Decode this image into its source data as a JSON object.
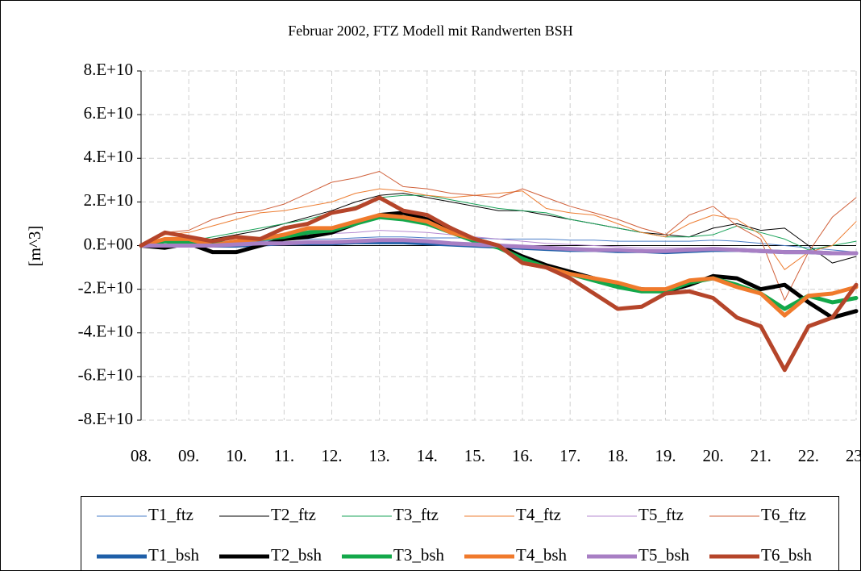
{
  "chart_data": {
    "type": "line",
    "title": "Februar 2002, FTZ Modell mit Randwerten BSH",
    "y_label": "[m^3]",
    "x": [
      8,
      8.5,
      9,
      9.5,
      10,
      10.5,
      11,
      11.5,
      12,
      12.5,
      13,
      13.5,
      14,
      14.5,
      15,
      15.5,
      16,
      16.5,
      17,
      17.5,
      18,
      18.5,
      19,
      19.5,
      20,
      20.5,
      21,
      21.5,
      22,
      22.5,
      23
    ],
    "xlim": [
      8,
      23
    ],
    "xticks": [
      {
        "value": 8,
        "label": "08."
      },
      {
        "value": 9,
        "label": "09."
      },
      {
        "value": 10,
        "label": "10."
      },
      {
        "value": 11,
        "label": "11."
      },
      {
        "value": 12,
        "label": "12."
      },
      {
        "value": 13,
        "label": "13."
      },
      {
        "value": 14,
        "label": "14."
      },
      {
        "value": 15,
        "label": "15."
      },
      {
        "value": 16,
        "label": "16."
      },
      {
        "value": 17,
        "label": "17."
      },
      {
        "value": 18,
        "label": "18."
      },
      {
        "value": 19,
        "label": "19."
      },
      {
        "value": 20,
        "label": "20."
      },
      {
        "value": 21,
        "label": "21."
      },
      {
        "value": 22,
        "label": "22."
      },
      {
        "value": 23,
        "label": "23."
      }
    ],
    "ylim": [
      -80000000000,
      80000000000
    ],
    "yticks": [
      {
        "value": -80000000000,
        "label": "-8.E+10"
      },
      {
        "value": -60000000000,
        "label": "-6.E+10"
      },
      {
        "value": -40000000000,
        "label": "-4.E+10"
      },
      {
        "value": -20000000000,
        "label": "-2.E+10"
      },
      {
        "value": 0,
        "label": "0.E+00"
      },
      {
        "value": 20000000000,
        "label": "2.E+10"
      },
      {
        "value": 40000000000,
        "label": "4.E+10"
      },
      {
        "value": 60000000000,
        "label": "6.E+10"
      },
      {
        "value": 80000000000,
        "label": "8.E+10"
      }
    ],
    "grid": true,
    "legend": "bottom",
    "series": [
      {
        "name": "T1_ftz",
        "color": "#4a7fc8",
        "width": 1,
        "values": [
          0,
          500000000.0,
          1000000000.0,
          1000000000.0,
          1500000000.0,
          2000000000.0,
          2500000000.0,
          3000000000.0,
          3000000000.0,
          3500000000.0,
          4000000000.0,
          4000000000.0,
          3500000000.0,
          3500000000.0,
          3500000000.0,
          3000000000.0,
          3000000000.0,
          3000000000.0,
          2500000000.0,
          2500000000.0,
          2000000000.0,
          2000000000.0,
          2000000000.0,
          2000000000.0,
          2500000000.0,
          2000000000.0,
          1000000000.0,
          0,
          -1000000000.0,
          -2000000000.0,
          -3000000000.0
        ]
      },
      {
        "name": "T2_ftz",
        "color": "#000000",
        "width": 1,
        "values": [
          0,
          2000000000.0,
          1000000000.0,
          3000000000.0,
          5000000000.0,
          7000000000.0,
          10000000000.0,
          13000000000.0,
          16000000000.0,
          20000000000.0,
          23000000000.0,
          24000000000.0,
          22000000000.0,
          20000000000.0,
          18000000000.0,
          16000000000.0,
          16000000000.0,
          14000000000.0,
          12000000000.0,
          10000000000.0,
          8000000000.0,
          6000000000.0,
          5000000000.0,
          4000000000.0,
          8000000000.0,
          10000000000.0,
          7000000000.0,
          8000000000.0,
          0,
          -8000000000.0,
          -5000000000.0
        ]
      },
      {
        "name": "T3_ftz",
        "color": "#1aa35a",
        "width": 1,
        "values": [
          0,
          3000000000.0,
          2000000000.0,
          4000000000.0,
          6000000000.0,
          8000000000.0,
          10000000000.0,
          12000000000.0,
          15000000000.0,
          18000000000.0,
          22000000000.0,
          23000000000.0,
          23000000000.0,
          21000000000.0,
          19000000000.0,
          17000000000.0,
          16000000000.0,
          15000000000.0,
          12000000000.0,
          10000000000.0,
          8000000000.0,
          6000000000.0,
          4000000000.0,
          4000000000.0,
          5000000000.0,
          9000000000.0,
          6000000000.0,
          3000000000.0,
          -2000000000.0,
          0,
          2000000000.0
        ]
      },
      {
        "name": "T4_ftz",
        "color": "#ed7d31",
        "width": 1,
        "values": [
          0,
          5000000000.0,
          6000000000.0,
          9000000000.0,
          12000000000.0,
          15000000000.0,
          16000000000.0,
          18000000000.0,
          20000000000.0,
          24000000000.0,
          26000000000.0,
          25000000000.0,
          23000000000.0,
          22000000000.0,
          23000000000.0,
          24000000000.0,
          25000000000.0,
          17000000000.0,
          15000000000.0,
          14000000000.0,
          10000000000.0,
          6000000000.0,
          4000000000.0,
          10000000000.0,
          14000000000.0,
          12000000000.0,
          5000000000.0,
          -11000000000.0,
          -3000000000.0,
          0,
          11000000000.0
        ]
      },
      {
        "name": "T5_ftz",
        "color": "#b48ad0",
        "width": 1,
        "values": [
          0,
          500000000.0,
          1000000000.0,
          1500000000.0,
          2000000000.0,
          3000000000.0,
          4000000000.0,
          5000000000.0,
          5500000000.0,
          6000000000.0,
          7000000000.0,
          6500000000.0,
          6000000000.0,
          5000000000.0,
          4000000000.0,
          3000000000.0,
          2000000000.0,
          1000000000.0,
          500000000.0,
          0,
          -500000000.0,
          -1000000000.0,
          -1000000000.0,
          -1000000000.0,
          -1000000000.0,
          -1500000000.0,
          -2000000000.0,
          -3000000000.0,
          -3500000000.0,
          -4000000000.0,
          -4000000000.0
        ]
      },
      {
        "name": "T6_ftz",
        "color": "#d0603a",
        "width": 1,
        "values": [
          0,
          6000000000.0,
          7000000000.0,
          12000000000.0,
          15000000000.0,
          16000000000.0,
          19000000000.0,
          24000000000.0,
          29000000000.0,
          31000000000.0,
          34000000000.0,
          27000000000.0,
          26000000000.0,
          24000000000.0,
          23000000000.0,
          22000000000.0,
          26000000000.0,
          22000000000.0,
          18000000000.0,
          15000000000.0,
          12000000000.0,
          8000000000.0,
          5000000000.0,
          14000000000.0,
          18000000000.0,
          9000000000.0,
          3000000000.0,
          -25000000000.0,
          -3000000000.0,
          13000000000.0,
          22000000000.0
        ]
      },
      {
        "name": "T1_bsh",
        "color": "#1f5fa8",
        "width": 5,
        "values": [
          0,
          0,
          0,
          0,
          0,
          500000000.0,
          1000000000.0,
          1000000000.0,
          1000000000.0,
          1500000000.0,
          1500000000.0,
          1500000000.0,
          1000000000.0,
          500000000.0,
          0,
          -500000000.0,
          -1000000000.0,
          -1500000000.0,
          -2000000000.0,
          -2000000000.0,
          -2500000000.0,
          -2500000000.0,
          -3000000000.0,
          -2500000000.0,
          -2000000000.0,
          -2000000000.0,
          -2500000000.0,
          -3000000000.0,
          -3000000000.0,
          -3500000000.0,
          -3500000000.0
        ]
      },
      {
        "name": "T2_bsh",
        "color": "#000000",
        "width": 5,
        "values": [
          0,
          -1000000000.0,
          1000000000.0,
          -3000000000.0,
          -3000000000.0,
          0,
          3000000000.0,
          4000000000.0,
          6000000000.0,
          10000000000.0,
          14000000000.0,
          15000000000.0,
          12000000000.0,
          8000000000.0,
          2000000000.0,
          0,
          -5000000000.0,
          -9000000000.0,
          -12000000000.0,
          -15000000000.0,
          -18000000000.0,
          -20000000000.0,
          -21000000000.0,
          -18000000000.0,
          -14000000000.0,
          -15000000000.0,
          -20000000000.0,
          -18000000000.0,
          -26000000000.0,
          -33000000000.0,
          -30000000000.0
        ]
      },
      {
        "name": "T3_bsh",
        "color": "#13a84a",
        "width": 5,
        "values": [
          0,
          2000000000.0,
          1000000000.0,
          1000000000.0,
          1000000000.0,
          3000000000.0,
          4000000000.0,
          6000000000.0,
          7000000000.0,
          10000000000.0,
          13000000000.0,
          12000000000.0,
          10000000000.0,
          6000000000.0,
          2000000000.0,
          -1000000000.0,
          -6000000000.0,
          -10000000000.0,
          -13000000000.0,
          -16000000000.0,
          -19000000000.0,
          -21000000000.0,
          -21000000000.0,
          -17000000000.0,
          -15000000000.0,
          -18000000000.0,
          -22000000000.0,
          -29000000000.0,
          -23000000000.0,
          -26000000000.0,
          -24000000000.0
        ]
      },
      {
        "name": "T4_bsh",
        "color": "#f07a2c",
        "width": 5,
        "values": [
          0,
          3000000000.0,
          3000000000.0,
          0,
          2000000000.0,
          3000000000.0,
          5000000000.0,
          8000000000.0,
          8000000000.0,
          11000000000.0,
          14000000000.0,
          13000000000.0,
          11000000000.0,
          6000000000.0,
          3000000000.0,
          0,
          -8000000000.0,
          -10000000000.0,
          -13000000000.0,
          -15000000000.0,
          -17000000000.0,
          -20000000000.0,
          -20000000000.0,
          -16000000000.0,
          -15000000000.0,
          -19000000000.0,
          -22000000000.0,
          -32000000000.0,
          -23000000000.0,
          -22000000000.0,
          -19000000000.0
        ]
      },
      {
        "name": "T5_bsh",
        "color": "#a87fc4",
        "width": 5,
        "values": [
          0,
          0,
          0,
          0,
          500000000.0,
          1000000000.0,
          1000000000.0,
          1500000000.0,
          1500000000.0,
          2000000000.0,
          2500000000.0,
          2500000000.0,
          2000000000.0,
          1000000000.0,
          500000000.0,
          0,
          -500000000.0,
          -1000000000.0,
          -1500000000.0,
          -2000000000.0,
          -2000000000.0,
          -2500000000.0,
          -2500000000.0,
          -2000000000.0,
          -1500000000.0,
          -2000000000.0,
          -2500000000.0,
          -3000000000.0,
          -3000000000.0,
          -3500000000.0,
          -3500000000.0
        ]
      },
      {
        "name": "T6_bsh",
        "color": "#b5452a",
        "width": 5,
        "values": [
          0,
          6000000000.0,
          4000000000.0,
          2000000000.0,
          4000000000.0,
          3000000000.0,
          8000000000.0,
          10000000000.0,
          15000000000.0,
          17000000000.0,
          22000000000.0,
          16000000000.0,
          14000000000.0,
          8000000000.0,
          3000000000.0,
          0,
          -8000000000.0,
          -10000000000.0,
          -15000000000.0,
          -22000000000.0,
          -29000000000.0,
          -28000000000.0,
          -22000000000.0,
          -21000000000.0,
          -24000000000.0,
          -33000000000.0,
          -37000000000.0,
          -57000000000.0,
          -37000000000.0,
          -33000000000.0,
          -18000000000.0
        ]
      }
    ]
  }
}
